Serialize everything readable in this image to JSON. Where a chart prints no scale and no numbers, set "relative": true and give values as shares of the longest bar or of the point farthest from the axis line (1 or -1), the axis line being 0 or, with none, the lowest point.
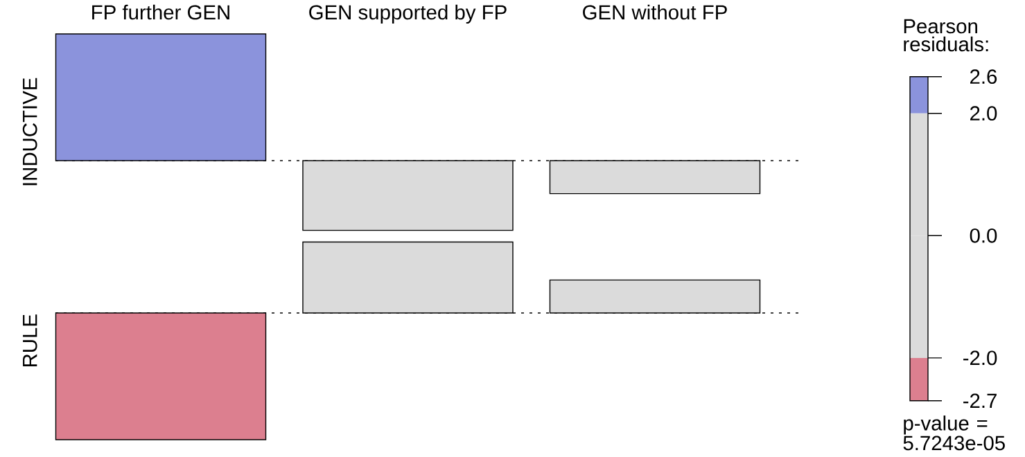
{
  "chart_data": [
    {
      "type": "bar",
      "categories": [
        "FP further GEN",
        "GEN supported by FP",
        "GEN without FP"
      ],
      "values": [
        1,
        -0.55,
        -0.26
      ],
      "colors": [
        "#8b93dc",
        "#dbdbdb",
        "#dbdbdb"
      ],
      "relative": true,
      "ylabel": "INDUCTIVE",
      "tick_labels": "x",
      "ref_lines": [
        {
          "axis": "y",
          "value": 0,
          "line_style": "dotted",
          "color": "#000000"
        }
      ]
    },
    {
      "type": "bar",
      "categories": [
        null,
        null,
        null
      ],
      "values": [
        -1,
        0.56,
        0.26
      ],
      "colors": [
        "#dc7f8f",
        "#dbdbdb",
        "#dbdbdb"
      ],
      "relative": true,
      "ylabel": "RULE",
      "ref_lines": [
        {
          "axis": "y",
          "value": 0,
          "line_style": "dotted",
          "color": "#000000"
        }
      ]
    },
    {
      "type": "bar",
      "title": "Pearson residuals:",
      "categories": [
        null
      ],
      "stacked": true,
      "series": [
        {
          "color": "#dbdbdb",
          "values": [
            2.0
          ]
        },
        {
          "color": "#8b93dc",
          "values": [
            0.6
          ]
        },
        {
          "color": "#dbdbdb",
          "values": [
            -2.0
          ]
        },
        {
          "color": "#dc7f8f",
          "values": [
            -0.7
          ]
        }
      ],
      "ylim": [
        -2.7,
        2.6
      ],
      "yticks": [
        2.6,
        {
          "value": 2,
          "label": "2.0"
        },
        {
          "value": 0,
          "label": "0.0"
        },
        {
          "value": -2,
          "label": "-2.0"
        },
        -2.7
      ],
      "annotations": [
        "p-value = 5.7243e-05"
      ]
    }
  ]
}
